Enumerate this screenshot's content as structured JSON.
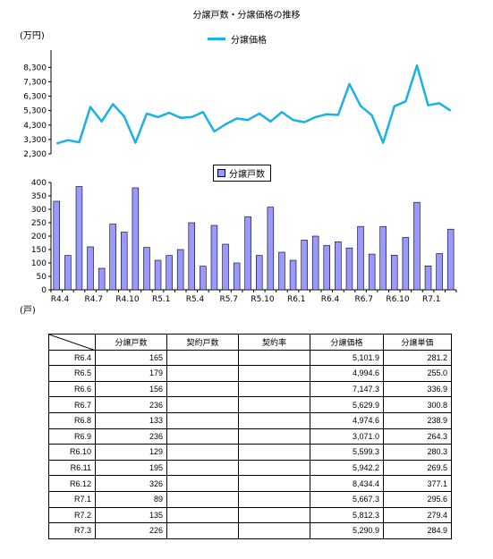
{
  "chart_data": [
    {
      "type": "line",
      "title": "分譲戸数・分譲価格の推移",
      "ylabel": "(万円)",
      "ylim": [
        2300,
        9500
      ],
      "yticks": [
        "2,300",
        "3,300",
        "4,300",
        "5,300",
        "6,300",
        "7,300",
        "8,300"
      ],
      "series": [
        {
          "name": "分譲価格",
          "color": "#1ab2e6",
          "values": [
            3020,
            3250,
            3100,
            5550,
            4550,
            5750,
            4900,
            3070,
            5100,
            4850,
            5150,
            4800,
            4850,
            5200,
            3850,
            4350,
            4750,
            4650,
            5100,
            4550,
            5200,
            4650,
            4500,
            4850,
            5050,
            5000,
            7147.3,
            5629.9,
            4974.6,
            3071.0,
            5599.3,
            5942.2,
            8434.4,
            5667.3,
            5812.3,
            5290.9
          ]
        }
      ]
    },
    {
      "type": "bar",
      "ylabel": "(戸)",
      "ylim": [
        0,
        400
      ],
      "yticks": [
        "0",
        "50",
        "100",
        "150",
        "200",
        "250",
        "300",
        "350",
        "400"
      ],
      "xtick_labels": [
        "R4.4",
        "R4.7",
        "R4.10",
        "R5.1",
        "R5.4",
        "R5.7",
        "R5.10",
        "R6.1",
        "R6.4",
        "R6.7",
        "R6.10",
        "R7.1"
      ],
      "series": [
        {
          "name": "分譲戸数",
          "color": "#9999ff",
          "values": [
            330,
            128,
            385,
            160,
            80,
            245,
            215,
            380,
            158,
            110,
            128,
            150,
            250,
            88,
            240,
            170,
            100,
            272,
            128,
            308,
            140,
            110,
            185,
            200,
            165,
            179,
            156,
            236,
            133,
            236,
            129,
            195,
            326,
            89,
            135,
            226
          ]
        }
      ]
    }
  ],
  "table": {
    "headers": [
      "分譲戸数",
      "契約戸数",
      "契約率",
      "分譲価格",
      "分譲単価"
    ],
    "rows": [
      {
        "label": "R6.4",
        "units": "165",
        "contracted": "",
        "rate": "",
        "price": "5,101.9",
        "unit_price": "281.2"
      },
      {
        "label": "R6.5",
        "units": "179",
        "contracted": "",
        "rate": "",
        "price": "4,994.6",
        "unit_price": "255.0"
      },
      {
        "label": "R6.6",
        "units": "156",
        "contracted": "",
        "rate": "",
        "price": "7,147.3",
        "unit_price": "336.9"
      },
      {
        "label": "R6.7",
        "units": "236",
        "contracted": "",
        "rate": "",
        "price": "5,629.9",
        "unit_price": "300.8"
      },
      {
        "label": "R6.8",
        "units": "133",
        "contracted": "",
        "rate": "",
        "price": "4,974.6",
        "unit_price": "238.9"
      },
      {
        "label": "R6.9",
        "units": "236",
        "contracted": "",
        "rate": "",
        "price": "3,071.0",
        "unit_price": "264.3"
      },
      {
        "label": "R6.10",
        "units": "129",
        "contracted": "",
        "rate": "",
        "price": "5,599.3",
        "unit_price": "280.3"
      },
      {
        "label": "R6.11",
        "units": "195",
        "contracted": "",
        "rate": "",
        "price": "5,942.2",
        "unit_price": "269.5"
      },
      {
        "label": "R6.12",
        "units": "326",
        "contracted": "",
        "rate": "",
        "price": "8,434.4",
        "unit_price": "377.1"
      },
      {
        "label": "R7.1",
        "units": "89",
        "contracted": "",
        "rate": "",
        "price": "5,667.3",
        "unit_price": "295.6"
      },
      {
        "label": "R7.2",
        "units": "135",
        "contracted": "",
        "rate": "",
        "price": "5,812.3",
        "unit_price": "279.4"
      },
      {
        "label": "R7.3",
        "units": "226",
        "contracted": "",
        "rate": "",
        "price": "5,290.9",
        "unit_price": "284.9"
      }
    ]
  }
}
